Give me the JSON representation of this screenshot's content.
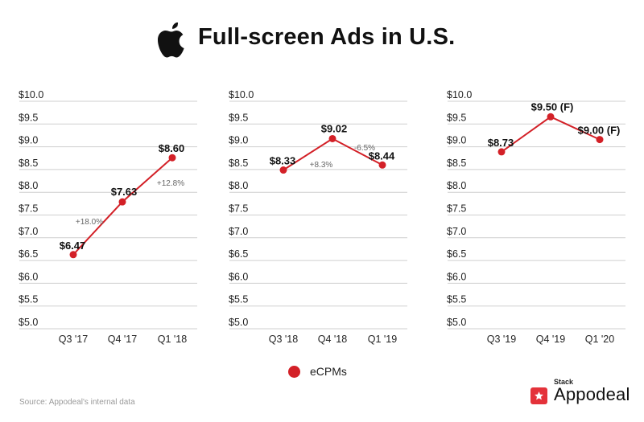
{
  "header": {
    "title": "Full-screen Ads in U.S.",
    "logo_icon": "apple-logo-icon"
  },
  "legend": {
    "label": "eCPMs"
  },
  "footer": {
    "source": "Source: Appodeal's internal data",
    "brand_sub": "Stack",
    "brand_name": "Appodeal",
    "brand_icon": "star-icon"
  },
  "colors": {
    "line": "#d32027",
    "point": "#d32027",
    "grid": "#cfcfcf",
    "brand": "#e4323a"
  },
  "chart_data": [
    {
      "type": "line",
      "categories": [
        "Q3 '17",
        "Q4 '17",
        "Q1 '18"
      ],
      "series": [
        {
          "name": "eCPMs",
          "values": [
            6.47,
            7.63,
            8.6
          ]
        }
      ],
      "point_labels": [
        "$6.47",
        "$7.63",
        "$8.60"
      ],
      "change_labels": [
        "+18.0%",
        "+12.8%"
      ],
      "yticks": [
        "$5.0",
        "$5.5",
        "$6.0",
        "$6.5",
        "$7.0",
        "$7.5",
        "$8.0",
        "$8.5",
        "$9.0",
        "$9.5",
        "$10.0"
      ],
      "ylim": [
        5.0,
        10.0
      ],
      "grid": true
    },
    {
      "type": "line",
      "categories": [
        "Q3 '18",
        "Q4 '18",
        "Q1 '19"
      ],
      "series": [
        {
          "name": "eCPMs",
          "values": [
            8.33,
            9.02,
            8.44
          ]
        }
      ],
      "point_labels": [
        "$8.33",
        "$9.02",
        "$8.44"
      ],
      "change_labels": [
        "+8.3%",
        "-6.5%"
      ],
      "yticks": [
        "$5.0",
        "$5.5",
        "$6.0",
        "$6.5",
        "$7.0",
        "$7.5",
        "$8.0",
        "$8.5",
        "$9.0",
        "$9.5",
        "$10.0"
      ],
      "ylim": [
        5.0,
        10.0
      ],
      "grid": true
    },
    {
      "type": "line",
      "categories": [
        "Q3 '19",
        "Q4 '19",
        "Q1 '20"
      ],
      "series": [
        {
          "name": "eCPMs",
          "values": [
            8.73,
            9.5,
            9.0
          ]
        }
      ],
      "point_labels": [
        "$8.73",
        "$9.50 (F)",
        "$9.00 (F)"
      ],
      "change_labels": [],
      "yticks": [
        "$5.0",
        "$5.5",
        "$6.0",
        "$6.5",
        "$7.0",
        "$7.5",
        "$8.0",
        "$8.5",
        "$9.0",
        "$9.5",
        "$10.0"
      ],
      "ylim": [
        5.0,
        10.0
      ],
      "grid": true
    }
  ]
}
